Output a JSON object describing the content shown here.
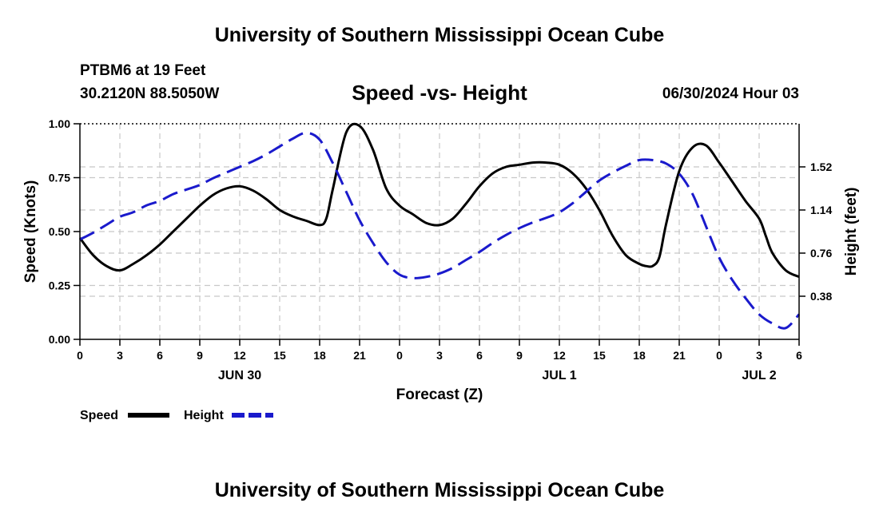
{
  "header": {
    "title": "University of Southern Mississippi Ocean Cube",
    "station": "PTBM6 at 19 Feet",
    "coords": "30.2120N  88.5050W",
    "datetime": "06/30/2024 Hour 03"
  },
  "footer": {
    "title": "University of Southern Mississippi Ocean Cube"
  },
  "chart_data": {
    "type": "line",
    "title": "Speed -vs- Height",
    "xlabel": "Forecast (Z)",
    "ylabel": "Speed (Knots)",
    "y2label": "Height (feet)",
    "xlim": [
      0,
      54
    ],
    "ylim": [
      0,
      1.0
    ],
    "y2lim": [
      0,
      1.9
    ],
    "x_ticks": [
      0,
      3,
      6,
      9,
      12,
      15,
      18,
      21,
      24,
      27,
      30,
      33,
      36,
      39,
      42,
      45,
      48,
      51,
      54
    ],
    "x_tick_labels": [
      "0",
      "3",
      "6",
      "9",
      "12",
      "15",
      "18",
      "21",
      "0",
      "3",
      "6",
      "9",
      "12",
      "15",
      "18",
      "21",
      "0",
      "3",
      "6"
    ],
    "y_ticks": [
      0,
      0.25,
      0.5,
      0.75,
      1.0
    ],
    "y_tick_labels": [
      "0.00",
      "0.25",
      "0.50",
      "0.75",
      "1.00"
    ],
    "y2_ticks": [
      0.38,
      0.76,
      1.14,
      1.52
    ],
    "y2_tick_labels": [
      "0.38",
      "0.76",
      "1.14",
      "1.52"
    ],
    "date_labels": [
      {
        "x": 12,
        "label": "JUN 30"
      },
      {
        "x": 36,
        "label": "JUL 1"
      },
      {
        "x": 51,
        "label": "JUL 2"
      }
    ],
    "grid": true,
    "legend_position": "bottom-left",
    "series": [
      {
        "name": "Speed",
        "axis": "left",
        "color": "#000000",
        "style": "solid",
        "x": [
          0,
          1,
          2,
          3,
          4,
          5,
          6,
          7,
          8,
          9,
          10,
          11,
          12,
          13,
          14,
          15,
          16,
          17,
          18,
          18.5,
          19,
          20,
          21,
          22,
          23,
          24,
          25,
          26,
          27,
          28,
          29,
          30,
          31,
          32,
          33,
          34,
          35,
          36,
          37,
          38,
          39,
          40,
          41,
          42,
          42.5,
          43,
          43.5,
          44,
          45,
          46,
          47,
          48,
          49,
          50,
          51,
          51.5,
          52,
          53,
          54
        ],
        "values": [
          0.47,
          0.39,
          0.34,
          0.32,
          0.35,
          0.39,
          0.44,
          0.5,
          0.56,
          0.62,
          0.67,
          0.7,
          0.71,
          0.69,
          0.65,
          0.6,
          0.57,
          0.55,
          0.53,
          0.56,
          0.7,
          0.96,
          0.99,
          0.88,
          0.7,
          0.62,
          0.58,
          0.54,
          0.53,
          0.56,
          0.63,
          0.71,
          0.77,
          0.8,
          0.81,
          0.82,
          0.82,
          0.81,
          0.77,
          0.7,
          0.6,
          0.48,
          0.39,
          0.35,
          0.34,
          0.34,
          0.38,
          0.53,
          0.78,
          0.89,
          0.9,
          0.82,
          0.73,
          0.64,
          0.56,
          0.48,
          0.4,
          0.32,
          0.29
        ]
      },
      {
        "name": "Height",
        "axis": "right",
        "color": "#1a1acc",
        "style": "dashed",
        "x": [
          0,
          1,
          2,
          3,
          4,
          5,
          6,
          7,
          8,
          9,
          10,
          11,
          12,
          13,
          14,
          15,
          16,
          17,
          18,
          19,
          20,
          21,
          22,
          23,
          24,
          25,
          26,
          27,
          28,
          29,
          30,
          31,
          32,
          33,
          34,
          35,
          36,
          37,
          38,
          39,
          40,
          41,
          42,
          43,
          44,
          45,
          46,
          47,
          48,
          49,
          50,
          51,
          52,
          53,
          54
        ],
        "values": [
          0.88,
          0.94,
          1.01,
          1.08,
          1.12,
          1.18,
          1.22,
          1.28,
          1.32,
          1.36,
          1.42,
          1.47,
          1.52,
          1.57,
          1.63,
          1.7,
          1.77,
          1.82,
          1.76,
          1.55,
          1.3,
          1.05,
          0.85,
          0.68,
          0.57,
          0.54,
          0.55,
          0.58,
          0.63,
          0.7,
          0.77,
          0.85,
          0.92,
          0.98,
          1.03,
          1.07,
          1.12,
          1.2,
          1.3,
          1.4,
          1.47,
          1.53,
          1.58,
          1.58,
          1.55,
          1.46,
          1.28,
          1.0,
          0.72,
          0.52,
          0.36,
          0.22,
          0.14,
          0.1,
          0.22
        ]
      }
    ]
  }
}
